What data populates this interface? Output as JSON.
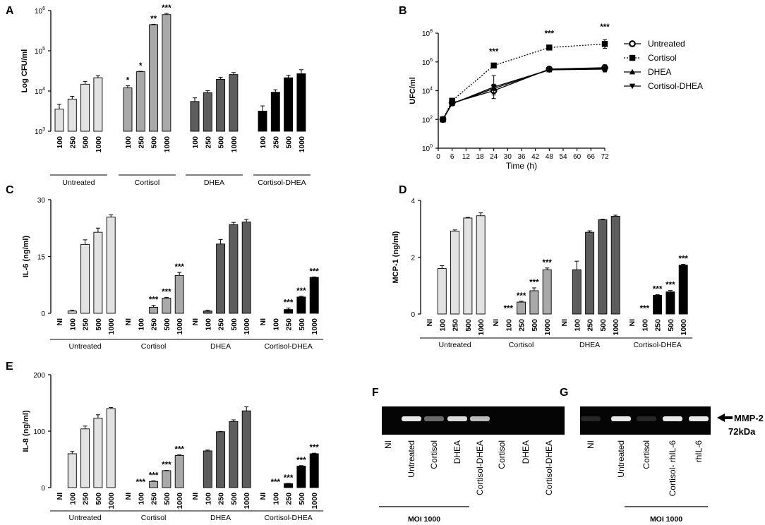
{
  "colors": {
    "untreated": "#e2e2e2",
    "cortisol": "#a9a9a9",
    "dhea": "#5d5d5d",
    "cortisol_dhea": "#000000",
    "band": "#e8e8e8",
    "gel": "#050505"
  },
  "panels": {
    "A": "A",
    "B": "B",
    "C": "C",
    "D": "D",
    "E": "E",
    "F": "F",
    "G": "G"
  },
  "chart_data": [
    {
      "id": "A",
      "type": "bar",
      "ylabel": "Log CFU/ml",
      "scale": "log10",
      "ylim_exp": [
        3,
        6
      ],
      "yticks": [
        {
          "base": "10",
          "exp": "3"
        },
        {
          "base": "10",
          "exp": "4"
        },
        {
          "base": "10",
          "exp": "5"
        },
        {
          "base": "10",
          "exp": "6"
        }
      ],
      "groups": [
        {
          "name": "Untreated",
          "color_key": "untreated",
          "categories": [
            "100",
            "250",
            "500",
            "1000"
          ],
          "values": [
            3.55,
            3.8,
            4.17,
            4.33
          ],
          "errors": [
            0.12,
            0.07,
            0.07,
            0.05
          ],
          "stars": [
            "",
            "",
            "",
            ""
          ]
        },
        {
          "name": "Cortisol",
          "color_key": "cortisol",
          "categories": [
            "100",
            "250",
            "500",
            "1000"
          ],
          "values": [
            4.08,
            4.48,
            5.65,
            5.9
          ],
          "errors": [
            0.05,
            0.01,
            0.01,
            0.03
          ],
          "stars": [
            "*",
            "*",
            "**",
            "***"
          ]
        },
        {
          "name": "DHEA",
          "color_key": "dhea",
          "categories": [
            "100",
            "250",
            "500",
            "1000"
          ],
          "values": [
            3.74,
            3.96,
            4.29,
            4.41
          ],
          "errors": [
            0.09,
            0.05,
            0.05,
            0.05
          ],
          "stars": [
            "",
            "",
            "",
            ""
          ]
        },
        {
          "name": "Cortisol-DHEA",
          "color_key": "cortisol_dhea",
          "categories": [
            "100",
            "250",
            "500",
            "1000"
          ],
          "values": [
            3.5,
            3.97,
            4.33,
            4.43
          ],
          "errors": [
            0.13,
            0.06,
            0.06,
            0.1
          ],
          "stars": [
            "",
            "",
            "",
            ""
          ]
        }
      ]
    },
    {
      "id": "B",
      "type": "line",
      "ylabel": "UFC/ml",
      "xlabel": "Time (h)",
      "scale": "log10",
      "ylim_exp": [
        0,
        8
      ],
      "xlim": [
        0,
        72
      ],
      "xticks": [
        "0",
        "6",
        "12",
        "18",
        "24",
        "30",
        "36",
        "42",
        "48",
        "54",
        "60",
        "66",
        "72"
      ],
      "yticks": [
        {
          "base": "10",
          "exp": "0"
        },
        {
          "base": "10",
          "exp": "2"
        },
        {
          "base": "10",
          "exp": "4"
        },
        {
          "base": "10",
          "exp": "6"
        },
        {
          "base": "10",
          "exp": "8"
        }
      ],
      "x": [
        2,
        6,
        24,
        48,
        72
      ],
      "series": [
        {
          "name": "Untreated",
          "marker": "circle-open",
          "dash": "",
          "values": [
            2.0,
            3.15,
            4.0,
            5.5,
            5.6
          ],
          "errors": [
            0.05,
            0.1,
            0.3,
            0.1,
            0.2
          ]
        },
        {
          "name": "Cortisol",
          "marker": "square",
          "dash": "2,2",
          "values": [
            2.0,
            3.3,
            5.75,
            7.0,
            7.25
          ],
          "errors": [
            0.05,
            0.1,
            0.1,
            0.1,
            0.3
          ]
        },
        {
          "name": "DHEA",
          "marker": "triangle-up",
          "dash": "",
          "values": [
            2.0,
            3.1,
            4.15,
            5.45,
            5.55
          ],
          "errors": [
            0.05,
            0.1,
            0.3,
            0.1,
            0.2
          ]
        },
        {
          "name": "Cortisol-DHEA",
          "marker": "triangle-down",
          "dash": "",
          "values": [
            2.0,
            3.1,
            4.25,
            5.45,
            5.5
          ],
          "errors": [
            0.05,
            0.1,
            0.8,
            0.1,
            0.2
          ]
        }
      ],
      "stars": [
        {
          "x": 24,
          "text": "***"
        },
        {
          "x": 48,
          "text": "***"
        },
        {
          "x": 72,
          "text": "***"
        }
      ]
    },
    {
      "id": "C",
      "type": "bar",
      "ylabel": "IL-6 (ng/ml)",
      "ylim": [
        0,
        30
      ],
      "yticks": [
        "0",
        "15",
        "30"
      ],
      "groups": [
        {
          "name": "Untreated",
          "color_key": "untreated",
          "categories": [
            "NI",
            "100",
            "250",
            "500",
            "1000"
          ],
          "values": [
            0,
            0.6,
            18.2,
            21.4,
            25.4
          ],
          "errors": [
            0,
            0.2,
            1.2,
            1.1,
            0.6
          ],
          "stars": [
            "",
            "",
            "",
            "",
            ""
          ]
        },
        {
          "name": "Cortisol",
          "color_key": "cortisol",
          "categories": [
            "NI",
            "100",
            "250",
            "500",
            "1000"
          ],
          "values": [
            0,
            0,
            1.6,
            4.0,
            10.0
          ],
          "errors": [
            0,
            0,
            0.5,
            0.2,
            0.8
          ],
          "stars": [
            "",
            "",
            "***",
            "***",
            "***"
          ]
        },
        {
          "name": "DHEA",
          "color_key": "dhea",
          "categories": [
            "NI",
            "100",
            "250",
            "500",
            "1000"
          ],
          "values": [
            0,
            0.6,
            18.3,
            23.4,
            24.1
          ],
          "errors": [
            0,
            0.2,
            1.2,
            0.6,
            0.7
          ],
          "stars": [
            "",
            "",
            "",
            "",
            ""
          ]
        },
        {
          "name": "Cortisol-DHEA",
          "color_key": "cortisol_dhea",
          "categories": [
            "NI",
            "100",
            "250",
            "500",
            "1000"
          ],
          "values": [
            0,
            0,
            1.0,
            4.3,
            9.5
          ],
          "errors": [
            0,
            0,
            0.4,
            0.2,
            0.1
          ],
          "stars": [
            "",
            "",
            "***",
            "***",
            "***"
          ]
        }
      ]
    },
    {
      "id": "D",
      "type": "bar",
      "ylabel": "MCP-1 (ng/ml)",
      "ylim": [
        0,
        4
      ],
      "yticks": [
        "0",
        "2",
        "4"
      ],
      "groups": [
        {
          "name": "Untreated",
          "color_key": "untreated",
          "categories": [
            "NI",
            "100",
            "250",
            "500",
            "1000"
          ],
          "values": [
            0,
            1.6,
            2.92,
            3.38,
            3.46
          ],
          "errors": [
            0,
            0.1,
            0.04,
            0.02,
            0.1
          ],
          "stars": [
            "",
            "",
            "",
            "",
            ""
          ]
        },
        {
          "name": "Cortisol",
          "color_key": "cortisol",
          "categories": [
            "NI",
            "100",
            "250",
            "500",
            "1000"
          ],
          "values": [
            0,
            0,
            0.42,
            0.82,
            1.56
          ],
          "errors": [
            0,
            0,
            0.03,
            0.1,
            0.06
          ],
          "stars": [
            "",
            "***",
            "***",
            "***",
            "***"
          ]
        },
        {
          "name": "DHEA",
          "color_key": "dhea",
          "categories": [
            "NI",
            "100",
            "250",
            "500",
            "1000"
          ],
          "values": [
            0,
            1.56,
            2.88,
            3.32,
            3.44
          ],
          "errors": [
            0,
            0.3,
            0.05,
            0.02,
            0.04
          ],
          "stars": [
            "",
            "",
            "",
            "",
            ""
          ]
        },
        {
          "name": "Cortisol-DHEA",
          "color_key": "cortisol_dhea",
          "categories": [
            "NI",
            "100",
            "250",
            "500",
            "1000"
          ],
          "values": [
            0,
            0,
            0.66,
            0.78,
            1.72
          ],
          "errors": [
            0,
            0,
            0.02,
            0.05,
            0.03
          ],
          "stars": [
            "",
            "***",
            "***",
            "***",
            "***"
          ]
        }
      ]
    },
    {
      "id": "E",
      "type": "bar",
      "ylabel": "IL-8 (ng/ml)",
      "ylim": [
        0,
        200
      ],
      "yticks": [
        "0",
        "100",
        "200"
      ],
      "groups": [
        {
          "name": "Untreated",
          "color_key": "untreated",
          "categories": [
            "NI",
            "100",
            "250",
            "500",
            "1000"
          ],
          "values": [
            0,
            60,
            104,
            123,
            140
          ],
          "errors": [
            0,
            4,
            5,
            6,
            2
          ],
          "stars": [
            "",
            "",
            "",
            "",
            ""
          ]
        },
        {
          "name": "Cortisol",
          "color_key": "cortisol",
          "categories": [
            "NI",
            "100",
            "250",
            "500",
            "1000"
          ],
          "values": [
            0,
            0,
            11,
            30,
            57
          ],
          "errors": [
            0,
            0,
            1,
            0.5,
            1
          ],
          "stars": [
            "",
            "***",
            "***",
            "***",
            "***"
          ]
        },
        {
          "name": "DHEA",
          "color_key": "dhea",
          "categories": [
            "NI",
            "100",
            "250",
            "500",
            "1000"
          ],
          "values": [
            0,
            65,
            99,
            117,
            136
          ],
          "errors": [
            0,
            1.5,
            0.5,
            3,
            7
          ],
          "stars": [
            "",
            "",
            "",
            "",
            ""
          ]
        },
        {
          "name": "Cortisol-DHEA",
          "color_key": "cortisol_dhea",
          "categories": [
            "NI",
            "100",
            "250",
            "500",
            "1000"
          ],
          "values": [
            0,
            0,
            7,
            38,
            60
          ],
          "errors": [
            0,
            0,
            0.5,
            1,
            1
          ],
          "stars": [
            "",
            "***",
            "***",
            "***",
            "***"
          ]
        }
      ]
    }
  ],
  "gels": {
    "F": {
      "lanes": [
        "NI",
        "Untreated",
        "Cortisol",
        "DHEA",
        "Cortisol-DHEA",
        "Cortisol",
        "DHEA",
        "Cortisol-DHEA"
      ],
      "bands": [
        0,
        1.0,
        0.45,
        0.95,
        0.8,
        0,
        0,
        0
      ],
      "moi": "MOI 1000"
    },
    "G": {
      "lanes": [
        "NI",
        "Untreated",
        "Cortisol",
        "Cortisol- rhIL-6",
        "rhIL-6"
      ],
      "bands": [
        0.15,
        1.0,
        0.15,
        1.0,
        1.0
      ],
      "moi": "MOI 1000",
      "marker": "MMP-2",
      "marker_size": "72kDa"
    }
  }
}
